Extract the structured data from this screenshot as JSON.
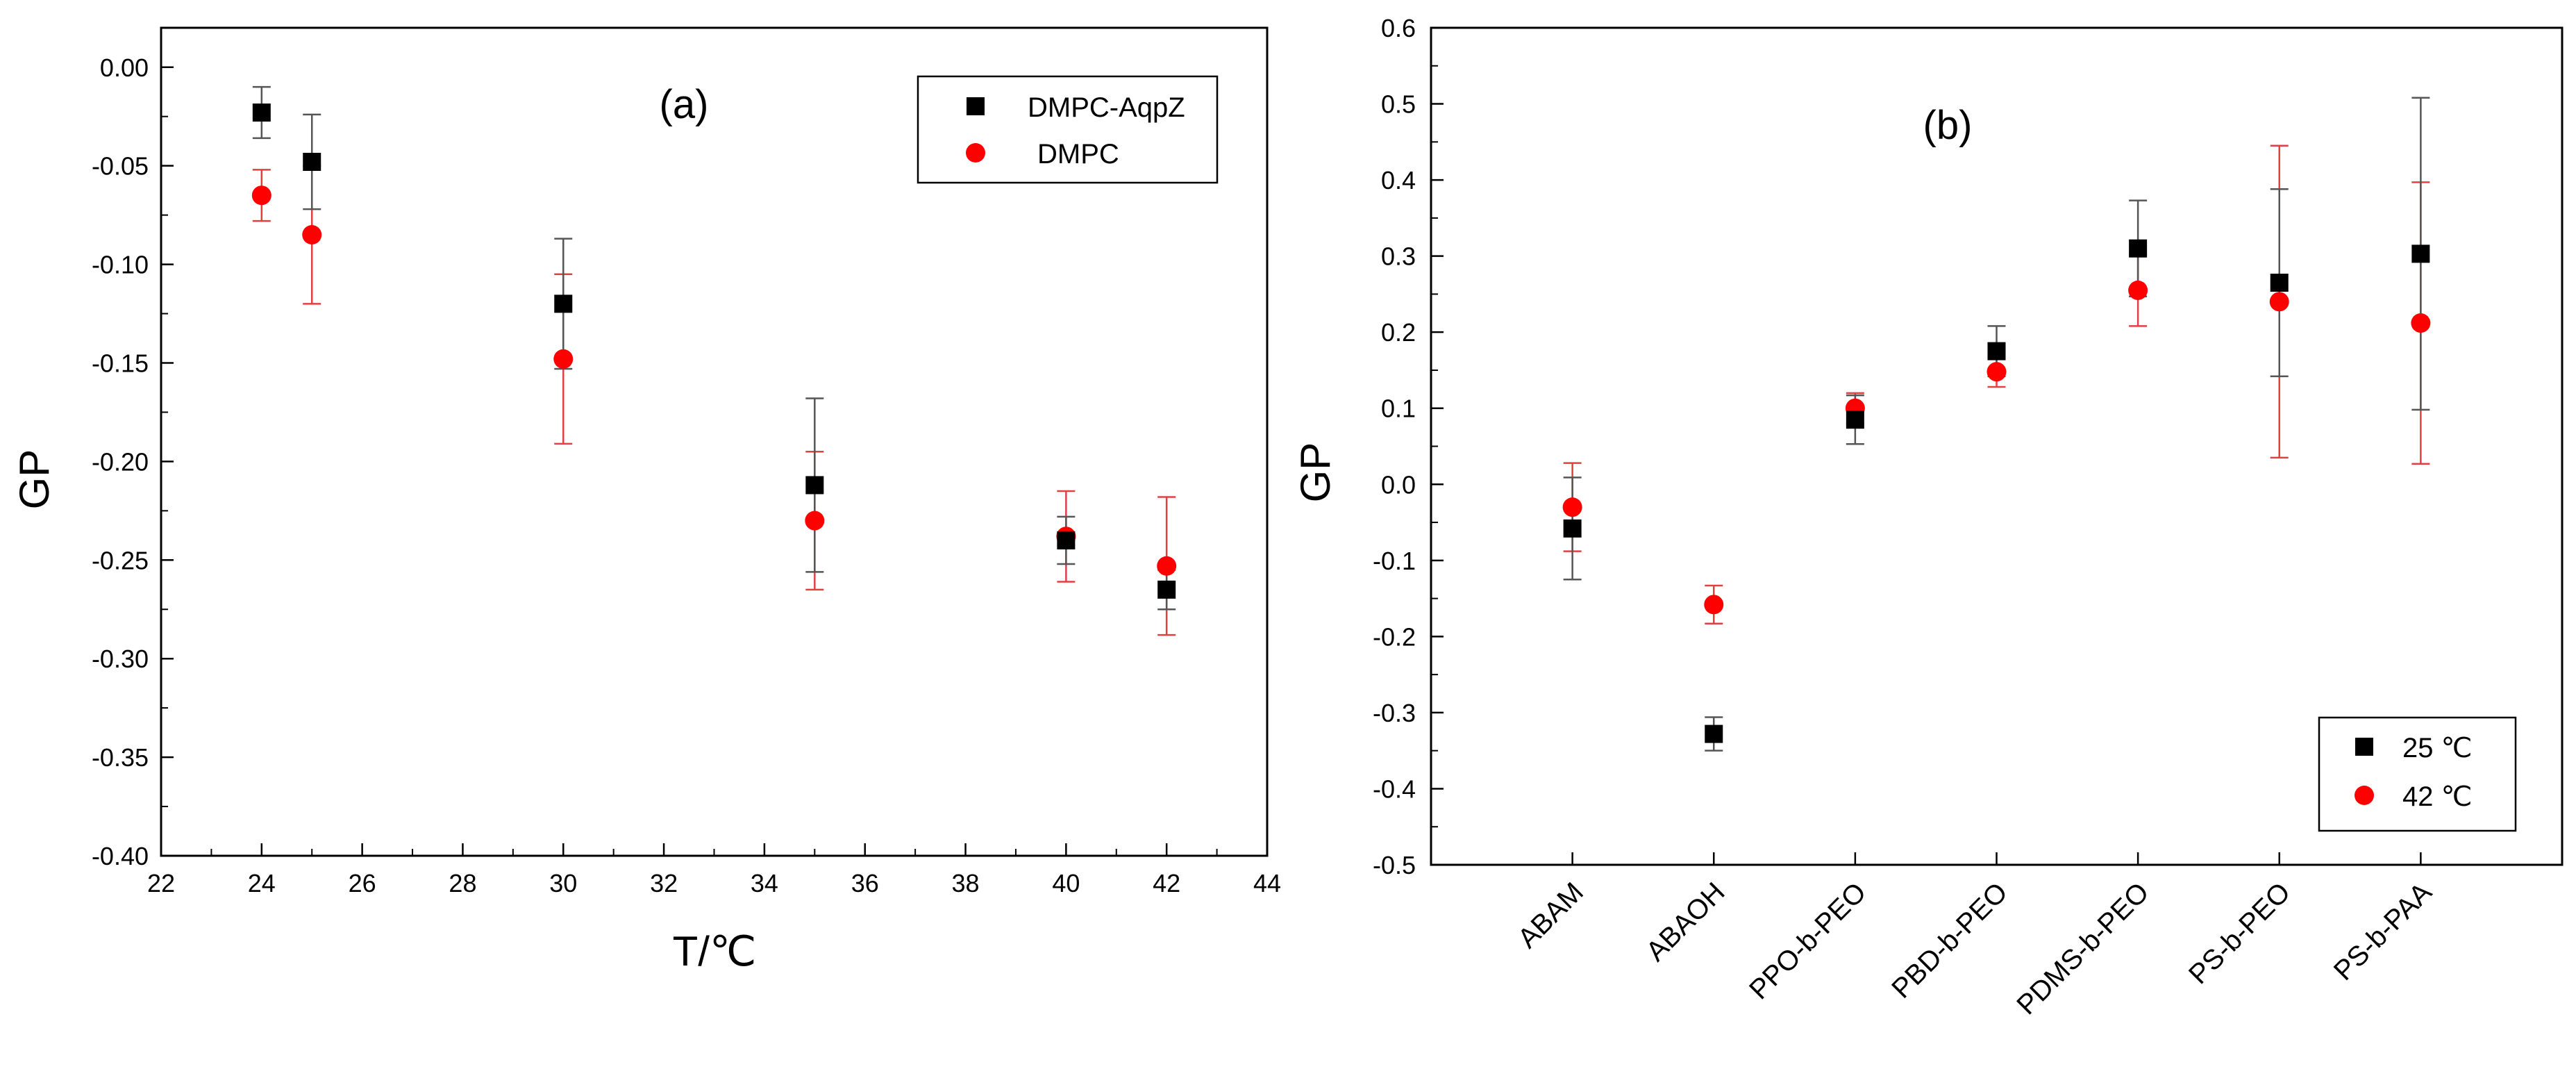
{
  "chart_data": [
    {
      "id": "a",
      "type": "scatter",
      "panel_label": "(a)",
      "xlabel": "T/℃",
      "ylabel": "GP",
      "xlim": [
        22,
        44
      ],
      "ylim": [
        -0.4,
        0.02
      ],
      "xticks": [
        "22",
        "24",
        "26",
        "28",
        "30",
        "32",
        "34",
        "36",
        "38",
        "40",
        "42",
        "44"
      ],
      "yticks": [
        "0.00",
        "-0.05",
        "-0.10",
        "-0.15",
        "-0.20",
        "-0.25",
        "-0.30",
        "-0.35",
        "-0.40"
      ],
      "legend_position": "top-right",
      "series": [
        {
          "name": "DMPC-AqpZ",
          "marker": "square",
          "color": "#000000",
          "error_color": "#555555",
          "x": [
            24,
            25,
            30,
            35,
            40,
            42
          ],
          "y": [
            -0.023,
            -0.048,
            -0.12,
            -0.212,
            -0.24,
            -0.265
          ],
          "yerr": [
            0.013,
            0.024,
            0.033,
            0.044,
            0.012,
            0.01
          ]
        },
        {
          "name": "DMPC",
          "marker": "circle",
          "color": "#ff0000",
          "error_color": "#e04040",
          "x": [
            24,
            25,
            30,
            35,
            40,
            42
          ],
          "y": [
            -0.065,
            -0.085,
            -0.148,
            -0.23,
            -0.238,
            -0.253
          ],
          "yerr": [
            0.013,
            0.035,
            0.043,
            0.035,
            0.023,
            0.035
          ]
        }
      ]
    },
    {
      "id": "b",
      "type": "scatter",
      "panel_label": "(b)",
      "xlabel": "",
      "ylabel": "GP",
      "categories": [
        "ABAM",
        "ABAOH",
        "PPO-b-PEO",
        "PBD-b-PEO",
        "PDMS-b-PEO",
        "PS-b-PEO",
        "PS-b-PAA"
      ],
      "ylim": [
        -0.5,
        0.6
      ],
      "yticks": [
        "0.6",
        "0.5",
        "0.4",
        "0.3",
        "0.2",
        "0.1",
        "0.0",
        "-0.1",
        "-0.2",
        "-0.3",
        "-0.4",
        "-0.5"
      ],
      "legend_position": "bottom-right",
      "series": [
        {
          "name": "25 ℃",
          "marker": "square",
          "color": "#000000",
          "error_color": "#555555",
          "values": [
            -0.058,
            -0.328,
            0.085,
            0.175,
            0.31,
            0.265,
            0.303
          ],
          "yerr": [
            0.067,
            0.022,
            0.032,
            0.033,
            0.063,
            0.123,
            0.205
          ]
        },
        {
          "name": "42 ℃",
          "marker": "circle",
          "color": "#ff0000",
          "error_color": "#e04040",
          "values": [
            -0.03,
            -0.158,
            0.1,
            0.148,
            0.255,
            0.24,
            0.212
          ],
          "yerr": [
            0.058,
            0.025,
            0.02,
            0.02,
            0.047,
            0.205,
            0.185
          ]
        }
      ]
    }
  ]
}
